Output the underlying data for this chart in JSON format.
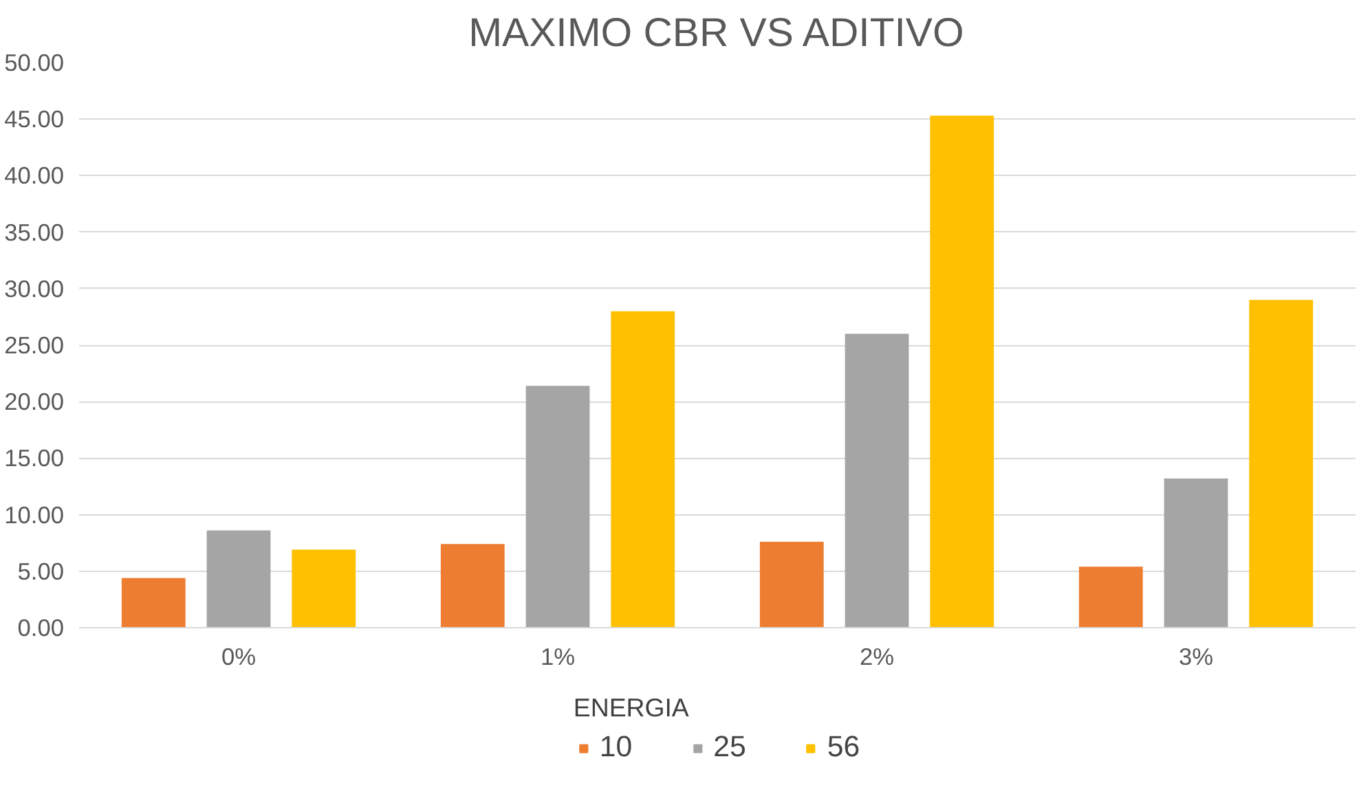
{
  "chart_data": {
    "type": "bar",
    "title": "MAXIMO CBR VS ADITIVO",
    "categories": [
      "0%",
      "1%",
      "2%",
      "3%"
    ],
    "series": [
      {
        "name": "10",
        "color": "#ed7d31",
        "values": [
          4.4,
          7.4,
          7.6,
          5.4
        ]
      },
      {
        "name": "25",
        "color": "#a5a5a5",
        "values": [
          8.6,
          21.4,
          26.0,
          13.2
        ]
      },
      {
        "name": "56",
        "color": "#ffc000",
        "values": [
          6.9,
          28.0,
          45.3,
          29.0
        ]
      }
    ],
    "legend_title": "ENERGIA",
    "legend": "bottom",
    "grid": "y",
    "ylim": [
      0,
      50
    ],
    "yticks": [
      {
        "value": 0,
        "label": "0.00"
      },
      {
        "value": 5,
        "label": "5.00"
      },
      {
        "value": 10,
        "label": "10.00"
      },
      {
        "value": 15,
        "label": "15.00"
      },
      {
        "value": 20,
        "label": "20.00"
      },
      {
        "value": 25,
        "label": "25.00"
      },
      {
        "value": 30,
        "label": "30.00"
      },
      {
        "value": 35,
        "label": "35.00"
      },
      {
        "value": 40,
        "label": "40.00"
      },
      {
        "value": 45,
        "label": "45.00"
      },
      {
        "value": 50,
        "label": "50.00"
      }
    ]
  }
}
